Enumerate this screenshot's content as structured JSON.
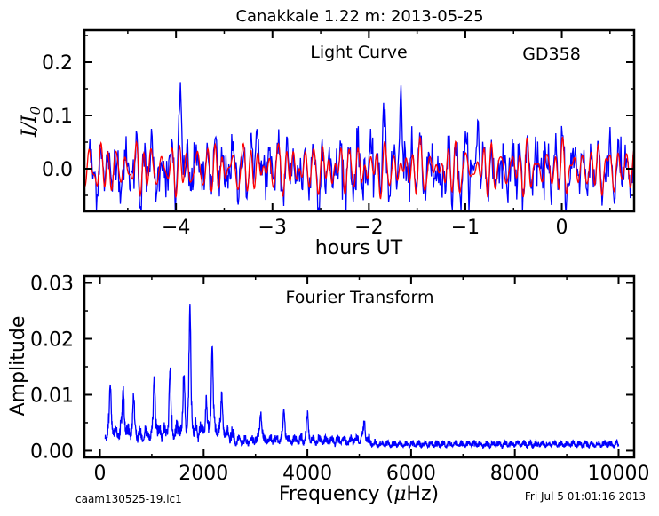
{
  "title": "Canakkale 1.22 m:  2013-05-25",
  "footer": {
    "left": "caam130525-19.lc1",
    "right": "Fri Jul  5 01:01:16 2013"
  },
  "colors": {
    "data": "#0000ff",
    "fit": "#ff0000",
    "axes": "#000000"
  },
  "chart_data": [
    {
      "type": "line",
      "annotations": [
        "Light Curve",
        "GD358"
      ],
      "xlabel": "hours UT",
      "ylabel": "I/I0",
      "xlim": [
        -4.95,
        0.75
      ],
      "ylim": [
        -0.08,
        0.26
      ],
      "xticks": [
        -4,
        -3,
        -2,
        -1,
        0
      ],
      "xtick_labels": [
        "−4",
        "−3",
        "−2",
        "−1",
        "0"
      ],
      "yticks": [
        0.0,
        0.1,
        0.2
      ],
      "ytick_labels": [
        "0.0",
        "0.1",
        "0.2"
      ],
      "series": [
        {
          "role": "observed light curve",
          "color": "#0000ff",
          "x_range": [
            -4.9,
            0.75
          ],
          "approx_range": [
            -0.08,
            0.16
          ],
          "peaks": [
            {
              "x": -3.95,
              "y": 0.145
            },
            {
              "x": -3.17,
              "y": 0.125
            },
            {
              "x": -1.67,
              "y": 0.16
            },
            {
              "x": -1.85,
              "y": 0.12
            },
            {
              "x": -0.87,
              "y": 0.11
            },
            {
              "x": 0.5,
              "y": 0.055
            }
          ]
        },
        {
          "role": "multi-periodic fit",
          "color": "#ff0000",
          "x_range": [
            -4.95,
            0.75
          ],
          "approx_amplitude": 0.05
        }
      ]
    },
    {
      "type": "line",
      "annotations": [
        "Fourier Transform"
      ],
      "xlabel": "Frequency (μHz)",
      "ylabel": "Amplitude",
      "xlim": [
        -300,
        10300
      ],
      "ylim": [
        -0.0012,
        0.0312
      ],
      "xticks": [
        0,
        2000,
        4000,
        6000,
        8000,
        10000
      ],
      "xtick_labels": [
        "0",
        "2000",
        "4000",
        "6000",
        "8000",
        "10000"
      ],
      "yticks": [
        0.0,
        0.01,
        0.02,
        0.03
      ],
      "ytick_labels": [
        "0.00",
        "0.01",
        "0.02",
        "0.03"
      ],
      "series": [
        {
          "role": "amplitude spectrum",
          "color": "#0000ff",
          "x_range": [
            100,
            10000
          ],
          "peaks": [
            {
              "x": 200,
              "y": 0.009
            },
            {
              "x": 450,
              "y": 0.0085
            },
            {
              "x": 650,
              "y": 0.006
            },
            {
              "x": 1050,
              "y": 0.0105
            },
            {
              "x": 1350,
              "y": 0.0115
            },
            {
              "x": 1620,
              "y": 0.0095
            },
            {
              "x": 1735,
              "y": 0.022
            },
            {
              "x": 2050,
              "y": 0.0055
            },
            {
              "x": 2165,
              "y": 0.0158
            },
            {
              "x": 2350,
              "y": 0.0065
            },
            {
              "x": 3100,
              "y": 0.0055
            },
            {
              "x": 3550,
              "y": 0.0055
            },
            {
              "x": 4000,
              "y": 0.0045
            },
            {
              "x": 5100,
              "y": 0.0035
            }
          ],
          "noise_level": 0.0015
        }
      ]
    }
  ]
}
